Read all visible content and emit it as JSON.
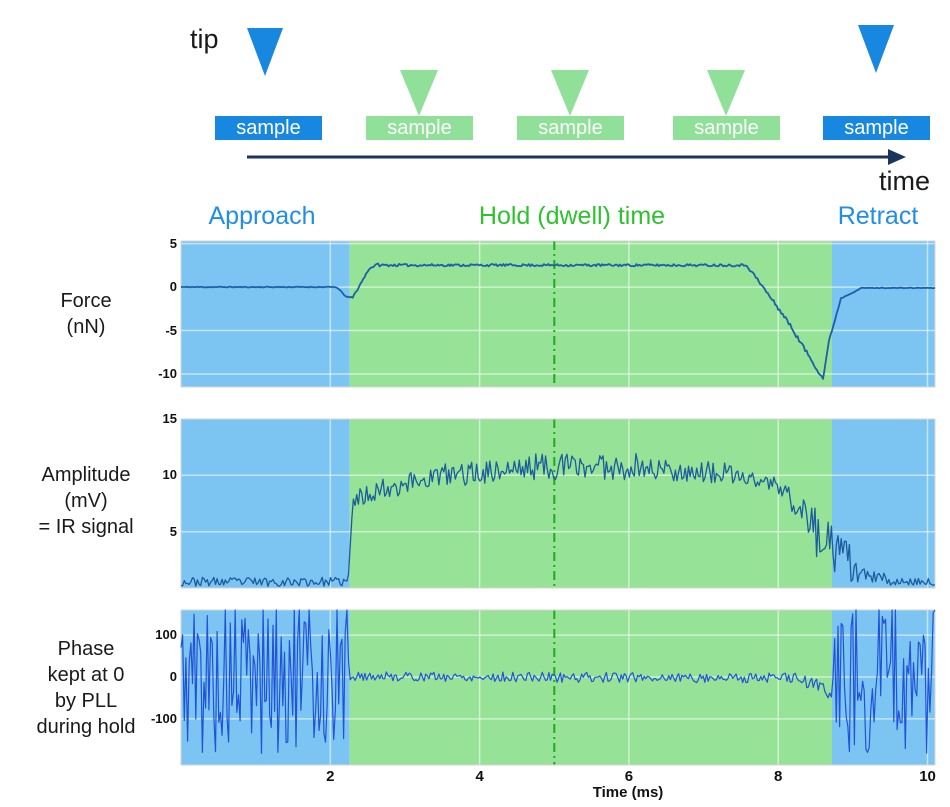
{
  "schematic": {
    "tip_label": "tip",
    "time_label": "time",
    "samples": [
      {
        "label": "sample",
        "variant": "blue"
      },
      {
        "label": "sample",
        "variant": "green"
      },
      {
        "label": "sample",
        "variant": "green"
      },
      {
        "label": "sample",
        "variant": "green"
      },
      {
        "label": "sample",
        "variant": "blue"
      }
    ],
    "colors": {
      "tip_blue": "#1787e0",
      "tip_green": "#90e09a",
      "arrow": "#17355e"
    }
  },
  "phases": {
    "approach": {
      "label": "Approach",
      "color": "#1e8ee8"
    },
    "hold": {
      "label": "Hold (dwell) time",
      "color": "#2ec22e"
    },
    "retract": {
      "label": "Retract",
      "color": "#1e8ee8"
    }
  },
  "row_labels": {
    "force": [
      "Force",
      "(nN)"
    ],
    "amplitude": [
      "Amplitude",
      "(mV)",
      "= IR signal"
    ],
    "phase": [
      "Phase",
      "kept at 0",
      "by PLL",
      "during hold"
    ]
  },
  "chart_data": {
    "type": "line",
    "xlabel": "Time (ms)",
    "xlim": [
      0,
      10.1
    ],
    "xticks": [
      2,
      4,
      6,
      8,
      10
    ],
    "dwell_marker_ms": 5,
    "dwell_marker_color": "#1faa1f",
    "regions": {
      "approach_end_ms": 2.26,
      "hold_end_ms": 8.72,
      "approach_color": "#7cc4f2",
      "hold_color": "#96e296",
      "retract_color": "#7cc4f2"
    },
    "panels": [
      {
        "name": "force",
        "ylabel": "Force (nN)",
        "ylim": [
          -11.5,
          5.3
        ],
        "yticks": [
          {
            "v": 5,
            "label": "5"
          },
          {
            "v": 0,
            "label": "0"
          },
          {
            "v": -5,
            "label": "-5"
          },
          {
            "v": -10,
            "label": "-10"
          }
        ],
        "line_color": "#1d5fa8",
        "line_width": 1.8,
        "seed": 11,
        "dt": 0.02,
        "segments": [
          [
            0,
            2.08,
            0,
            0,
            0.05
          ],
          [
            2.08,
            2.22,
            0,
            -1.15,
            0.06
          ],
          [
            2.22,
            2.3,
            -1.15,
            -1.2,
            0.06
          ],
          [
            2.3,
            2.52,
            -1.2,
            2.1,
            0.12
          ],
          [
            2.52,
            2.66,
            2.1,
            2.75,
            0.1
          ],
          [
            2.66,
            7.58,
            2.52,
            2.52,
            0.14
          ],
          [
            7.58,
            8.1,
            2.52,
            -3.6,
            0.22
          ],
          [
            8.1,
            8.6,
            -3.6,
            -10.55,
            0.22
          ],
          [
            8.6,
            8.68,
            -10.55,
            -6.2,
            0.12
          ],
          [
            8.68,
            8.84,
            -6.2,
            -1.3,
            0.1
          ],
          [
            8.84,
            9.1,
            -1.3,
            -0.18,
            0.05
          ],
          [
            9.1,
            10.11,
            -0.1,
            -0.1,
            0.035
          ]
        ]
      },
      {
        "name": "amplitude",
        "ylabel": "Amplitude (mV) = IR signal",
        "ylim": [
          0,
          15
        ],
        "yticks": [
          {
            "v": 15,
            "label": "15"
          },
          {
            "v": 10,
            "label": "10"
          },
          {
            "v": 5,
            "label": "5"
          }
        ],
        "line_color": "#1b5c9e",
        "line_width": 1.3,
        "seed": 23,
        "dt": 0.022,
        "segments": [
          [
            0,
            2.24,
            0.55,
            0.55,
            0.4
          ],
          [
            2.24,
            2.3,
            0.6,
            7.4,
            0.4
          ],
          [
            2.3,
            2.62,
            7.7,
            8.7,
            0.85
          ],
          [
            2.62,
            3.4,
            8.7,
            9.9,
            1.0
          ],
          [
            3.4,
            4.7,
            9.9,
            10.7,
            1.05
          ],
          [
            4.7,
            6.1,
            10.8,
            10.8,
            1.2
          ],
          [
            6.1,
            7.3,
            10.7,
            10.1,
            1.0
          ],
          [
            7.3,
            7.95,
            10.1,
            9.2,
            0.85
          ],
          [
            7.95,
            8.4,
            9.2,
            6.5,
            1.1
          ],
          [
            8.4,
            8.72,
            6.0,
            3.2,
            2.3
          ],
          [
            8.72,
            9.1,
            3.4,
            1.4,
            1.9
          ],
          [
            9.1,
            9.45,
            1.2,
            0.7,
            0.6
          ],
          [
            9.45,
            10.11,
            0.55,
            0.55,
            0.3
          ]
        ]
      },
      {
        "name": "phase",
        "ylabel": "Phase kept at 0 by PLL during hold",
        "ylim": [
          -210,
          160
        ],
        "yticks": [
          {
            "v": 100,
            "label": "100"
          },
          {
            "v": 0,
            "label": "0"
          },
          {
            "v": -100,
            "label": "-100"
          }
        ],
        "line_color": "#2053d8",
        "line_width": 1.2,
        "seed": 5,
        "dt": 0.022,
        "segments": [
          [
            0,
            2.26,
            0,
            0,
            185
          ],
          [
            2.26,
            4.0,
            2,
            0,
            11
          ],
          [
            4.0,
            8.25,
            0,
            -2,
            12
          ],
          [
            8.25,
            8.55,
            -8,
            -18,
            15
          ],
          [
            8.55,
            8.72,
            -25,
            -40,
            20
          ],
          [
            8.72,
            10.11,
            0,
            0,
            185
          ]
        ]
      }
    ]
  }
}
